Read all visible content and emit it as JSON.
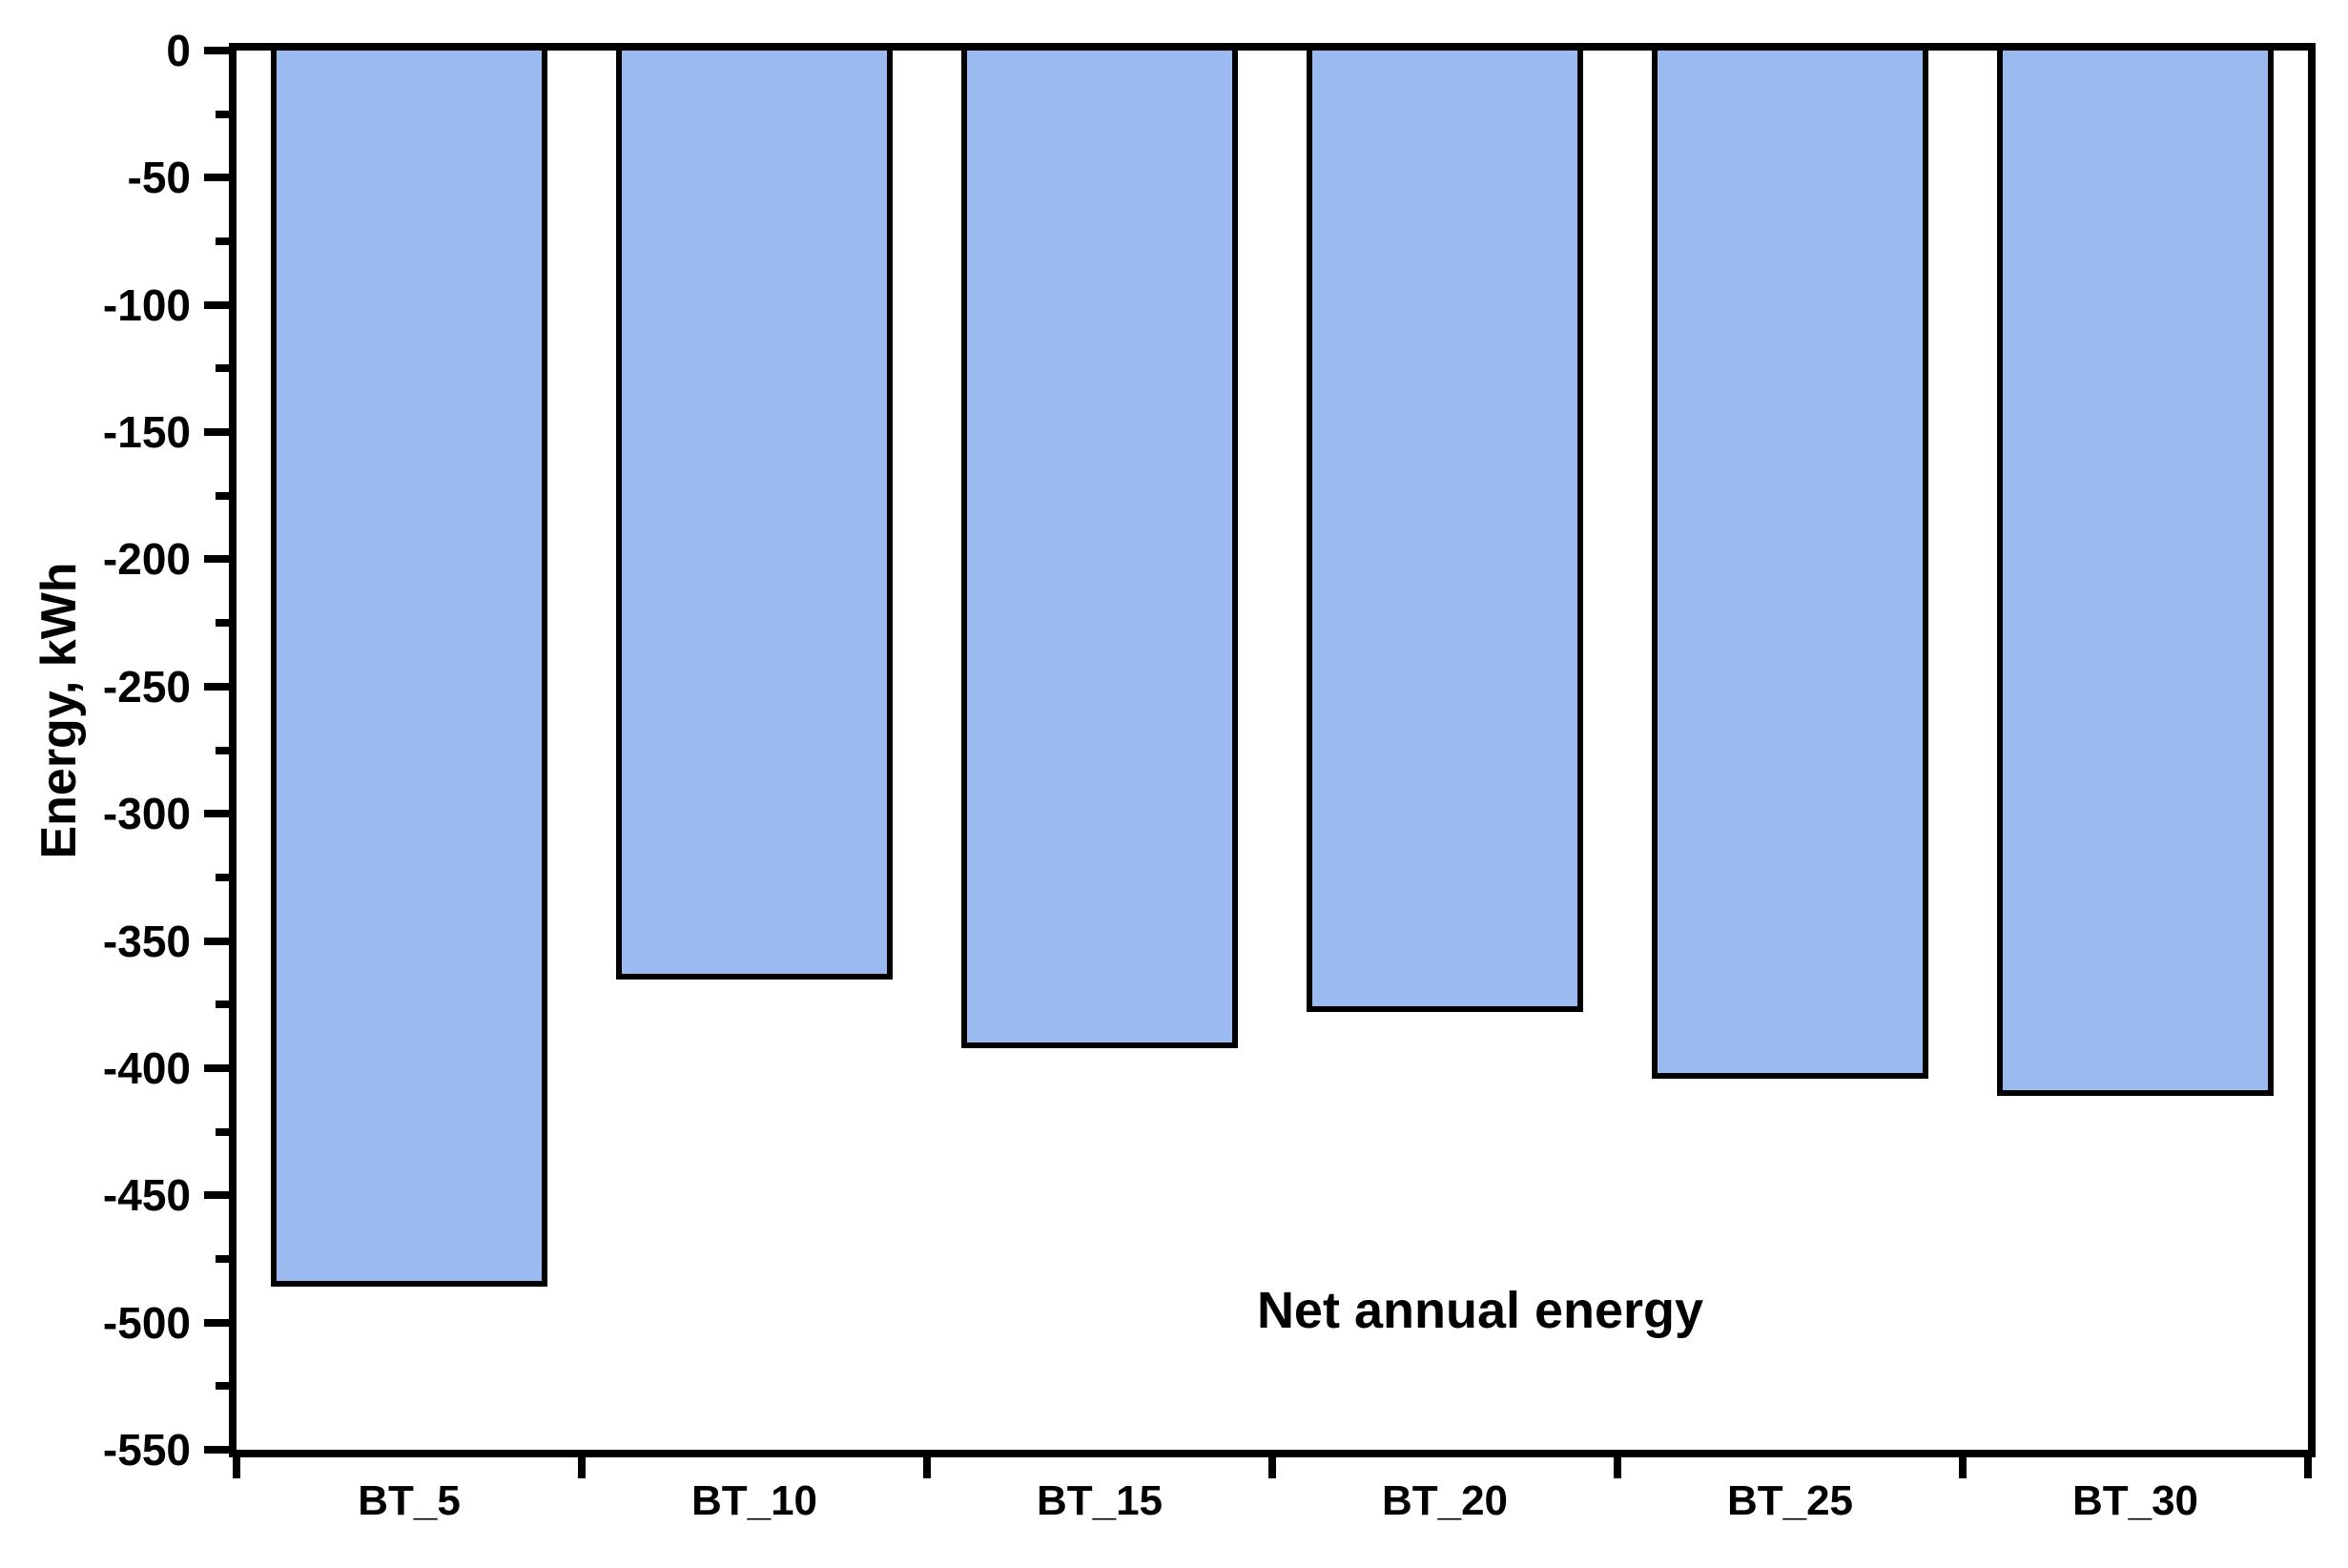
{
  "chart_data": {
    "type": "bar",
    "categories": [
      "BT_5",
      "BT_10",
      "BT_15",
      "BT_20",
      "BT_25",
      "BT_30"
    ],
    "values": [
      -486,
      -365,
      -392,
      -378,
      -404,
      -411
    ],
    "title": "",
    "xlabel": "",
    "ylabel": "Energy, kWh",
    "annotation": "Net annual energy",
    "ylim": [
      -550,
      0
    ],
    "ytick_step": 50,
    "ytick_minor_step": 25,
    "ytick_labels": [
      "0",
      "-50",
      "-100",
      "-150",
      "-200",
      "-250",
      "-300",
      "-350",
      "-400",
      "-450",
      "-500",
      "-550"
    ],
    "grid": false,
    "legend": "none",
    "colors": {
      "bar_fill": "#9bbaf0",
      "bar_border": "#000000",
      "axis": "#000000",
      "text": "#000000",
      "background": "#ffffff"
    }
  }
}
